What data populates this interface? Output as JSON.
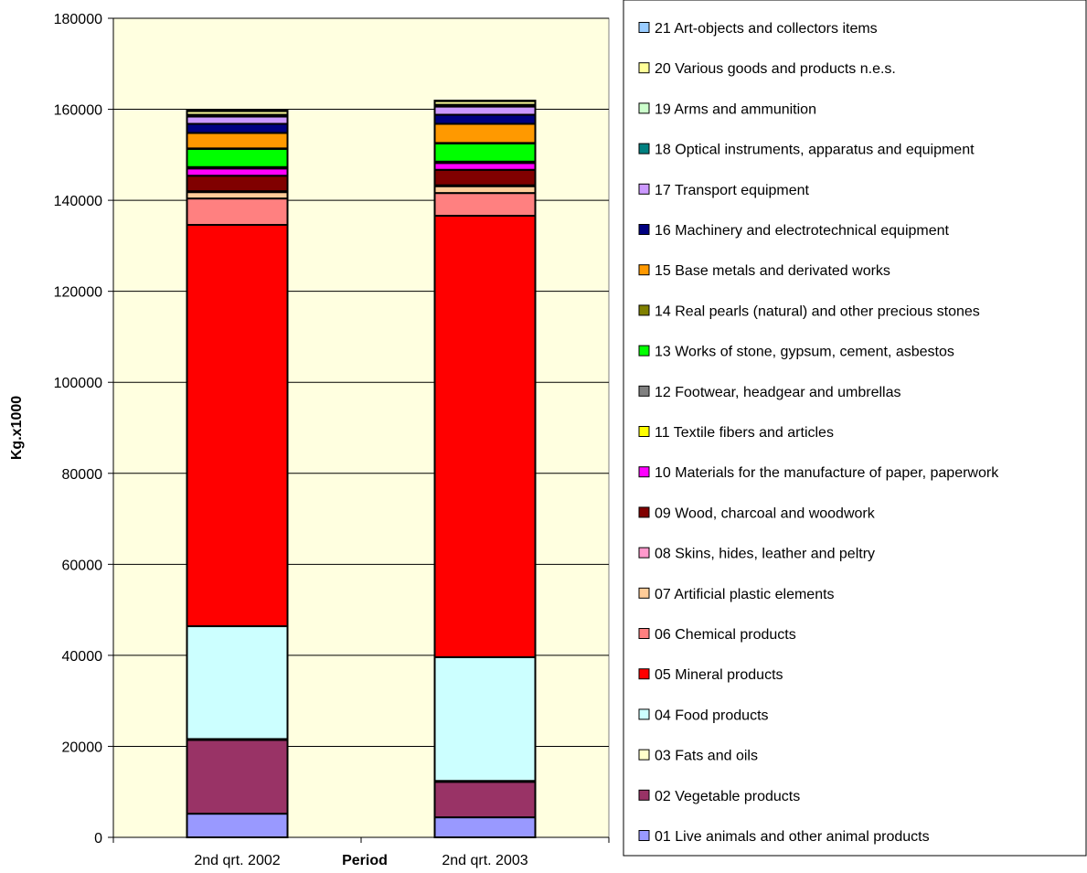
{
  "chart_data": {
    "type": "bar",
    "stacked": true,
    "categories": [
      "2nd qrt. 2002",
      "2nd qrt. 2003"
    ],
    "xlabel": "Period",
    "ylabel": "Kg.x1000",
    "ylim": [
      0,
      180000
    ],
    "yticks": [
      0,
      20000,
      40000,
      60000,
      80000,
      100000,
      120000,
      140000,
      160000,
      180000
    ],
    "grid": true,
    "plot_background": "#FFFFE0",
    "legend_position": "right",
    "series": [
      {
        "name": "01 Live animals and other animal products",
        "color": "#9999FF",
        "values": [
          5200,
          4400
        ]
      },
      {
        "name": "02 Vegetable products",
        "color": "#993366",
        "values": [
          16200,
          7800
        ]
      },
      {
        "name": "03 Fats and oils",
        "color": "#FFFFCC",
        "values": [
          200,
          200
        ]
      },
      {
        "name": "04 Food products",
        "color": "#CCFFFF",
        "values": [
          24800,
          27200
        ]
      },
      {
        "name": "05 Mineral products",
        "color": "#FF0000",
        "values": [
          88200,
          97000
        ]
      },
      {
        "name": "06 Chemical products",
        "color": "#FF8080",
        "values": [
          5800,
          5000
        ]
      },
      {
        "name": "07 Artificial plastic elements",
        "color": "#FFCC99",
        "values": [
          1400,
          1500
        ]
      },
      {
        "name": "08 Skins, hides, leather and peltry",
        "color": "#FF99CC",
        "values": [
          200,
          200
        ]
      },
      {
        "name": "09 Wood, charcoal and woodwork",
        "color": "#800000",
        "values": [
          3400,
          3400
        ]
      },
      {
        "name": "10 Materials for the manufacture of paper, paperwork",
        "color": "#FF00FF",
        "values": [
          1600,
          1500
        ]
      },
      {
        "name": "11 Textile fibers and articles",
        "color": "#FFFF00",
        "values": [
          200,
          200
        ]
      },
      {
        "name": "12 Footwear, headgear and umbrellas",
        "color": "#808080",
        "values": [
          100,
          100
        ]
      },
      {
        "name": "13 Works of stone, gypsum, cement, asbestos",
        "color": "#00FF00",
        "values": [
          4000,
          4000
        ]
      },
      {
        "name": "14 Real pearls (natural) and other precious stones",
        "color": "#808000",
        "values": [
          100,
          100
        ]
      },
      {
        "name": "15 Base metals and derivated works",
        "color": "#FF9900",
        "values": [
          3400,
          4200
        ]
      },
      {
        "name": "16 Machinery and electrotechnical equipment",
        "color": "#000080",
        "values": [
          2000,
          2000
        ]
      },
      {
        "name": "17 Transport equipment",
        "color": "#CC99FF",
        "values": [
          1600,
          1800
        ]
      },
      {
        "name": "18 Optical instruments, apparatus and equipment",
        "color": "#008080",
        "values": [
          300,
          300
        ]
      },
      {
        "name": "19 Arms and ammunition",
        "color": "#CCFFCC",
        "values": [
          100,
          100
        ]
      },
      {
        "name": "20 Various goods and products n.e.s.",
        "color": "#FFFF99",
        "values": [
          800,
          800
        ]
      },
      {
        "name": "21 Art-objects and collectors items",
        "color": "#99CCFF",
        "values": [
          100,
          100
        ]
      }
    ]
  }
}
